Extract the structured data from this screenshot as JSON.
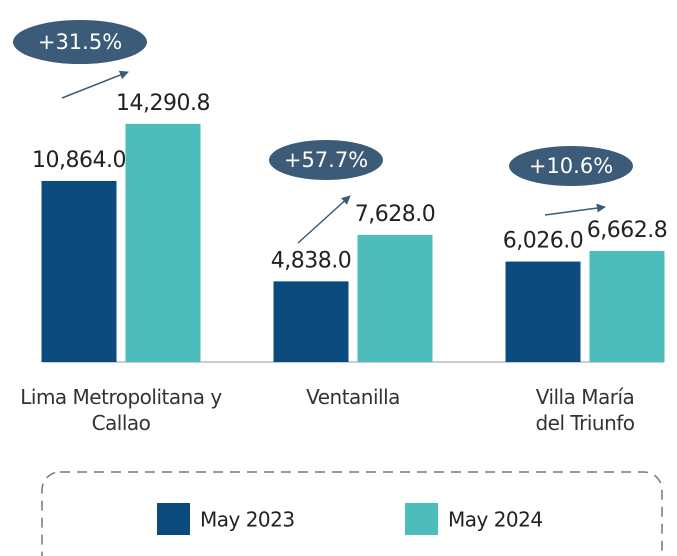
{
  "chart_data": {
    "type": "bar",
    "categories": [
      "Lima Metropolitana y Callao",
      "Ventanilla",
      "Villa María del Triunfo"
    ],
    "series": [
      {
        "name": "May 2023",
        "color": "#0b4a7d",
        "values": [
          10864.0,
          4838.0,
          6026.0
        ],
        "value_labels": [
          "10,864.0",
          "4,838.0",
          "6,026.0"
        ]
      },
      {
        "name": "May 2024",
        "color": "#4dbdbb",
        "values": [
          14290.8,
          7628.0,
          6662.8
        ],
        "value_labels": [
          "14,290.8",
          "7,628.0",
          "6,662.8"
        ]
      }
    ],
    "annotations": [
      "+31.5%",
      "+57.7%",
      "+10.6%"
    ],
    "ylim": [
      0,
      15000
    ]
  }
}
